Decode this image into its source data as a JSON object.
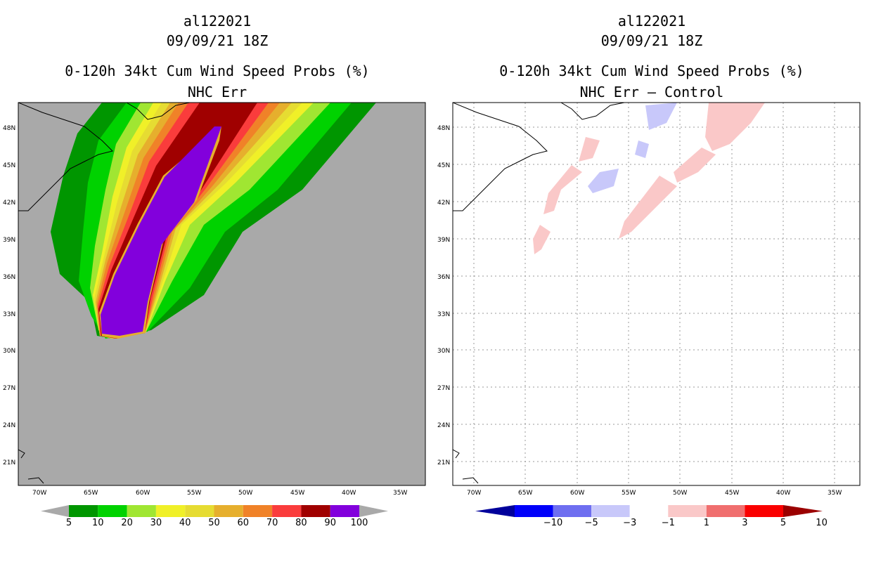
{
  "panels": [
    {
      "storm_id": "al122021",
      "datetime": "09/09/21 18Z",
      "product": "0-120h 34kt Cum Wind Speed Probs (%)",
      "subtitle": "NHC Err",
      "background": "#a9a9a9",
      "lat_labels": [
        "48N",
        "45N",
        "42N",
        "39N",
        "36N",
        "33N",
        "30N",
        "27N",
        "24N",
        "21N"
      ],
      "lon_labels": [
        "70W",
        "65W",
        "60W",
        "55W",
        "50W",
        "45W",
        "40W",
        "35W"
      ],
      "colorbar": {
        "labels": [
          "5",
          "10",
          "20",
          "30",
          "40",
          "50",
          "60",
          "70",
          "80",
          "90",
          "100"
        ],
        "colors": [
          "#009600",
          "#00d200",
          "#a0e632",
          "#f0f028",
          "#e6dc32",
          "#e6af2d",
          "#f08228",
          "#fa3c3c",
          "#a00000",
          "#8200dc"
        ]
      }
    },
    {
      "storm_id": "al122021",
      "datetime": "09/09/21 18Z",
      "product": "0-120h 34kt Cum Wind Speed Probs (%)",
      "subtitle": "NHC Err – Control",
      "background": "#ffffff",
      "lat_labels": [
        "48N",
        "45N",
        "42N",
        "39N",
        "36N",
        "33N",
        "30N",
        "27N",
        "24N",
        "21N"
      ],
      "lon_labels": [
        "70W",
        "65W",
        "60W",
        "55W",
        "50W",
        "45W",
        "40W",
        "35W"
      ],
      "colorbar": {
        "labels": [
          "−10",
          "−5",
          "−3",
          "−1",
          "1",
          "3",
          "5",
          "10"
        ],
        "colors": [
          "#00009b",
          "#0000fa",
          "#6e6ef0",
          "#c8c8fa",
          "#ffffff",
          "#fac8c8",
          "#f06e6e",
          "#fa0000",
          "#9b0000"
        ]
      }
    }
  ]
}
